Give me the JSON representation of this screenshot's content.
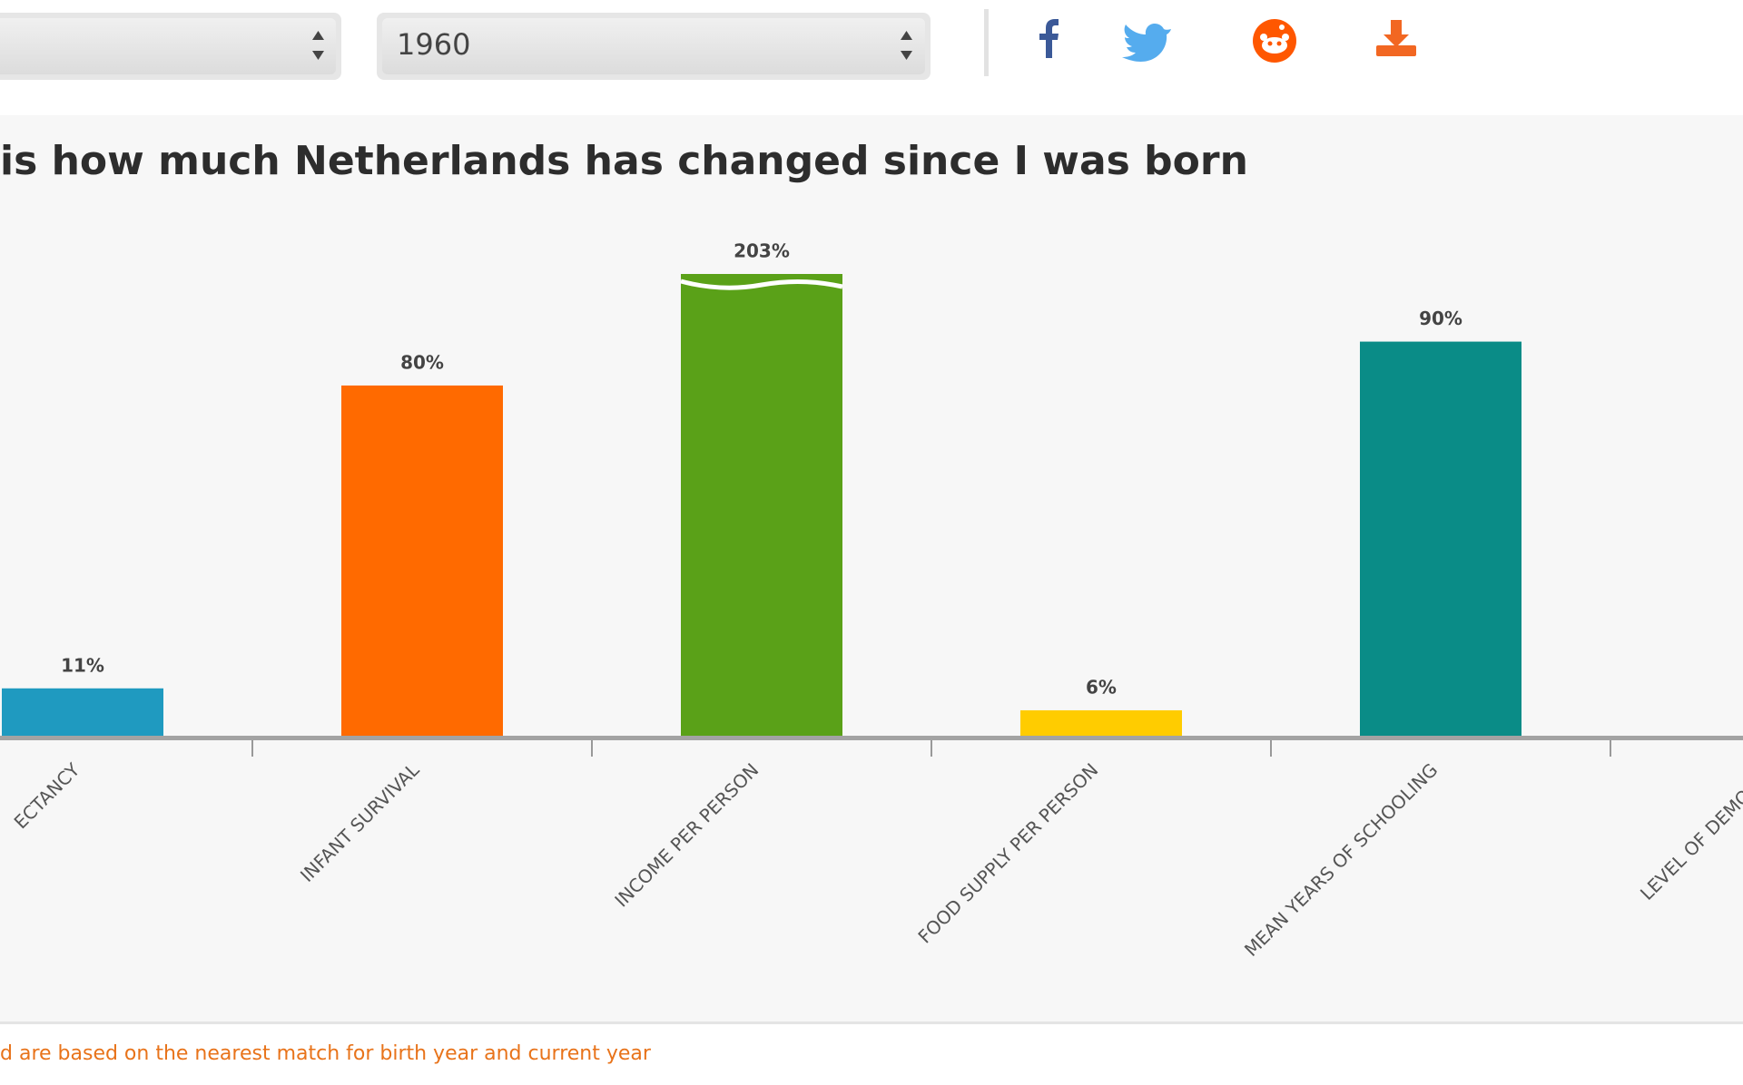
{
  "ui": {
    "year_select": "1960"
  },
  "chart_data": {
    "type": "bar",
    "title": "is how much Netherlands has changed since I was born",
    "categories": [
      "ECTANCY",
      "INFANT SURVIVAL",
      "INCOME PER PERSON",
      "FOOD SUPPLY PER PERSON",
      "MEAN YEARS OF SCHOOLING",
      "LEVEL OF DEMOCRA"
    ],
    "values": [
      11,
      80,
      203,
      6,
      90,
      null
    ],
    "value_labels": [
      "11%",
      "80%",
      "203%",
      "6%",
      "90%",
      null
    ],
    "colors": [
      "#1f9ac0",
      "#ff6a00",
      "#5aa118",
      "#ffcc00",
      "#0a8c87",
      null
    ],
    "ylim": [
      0,
      105
    ],
    "footnote": "d are based on the nearest match for birth year and current year"
  }
}
